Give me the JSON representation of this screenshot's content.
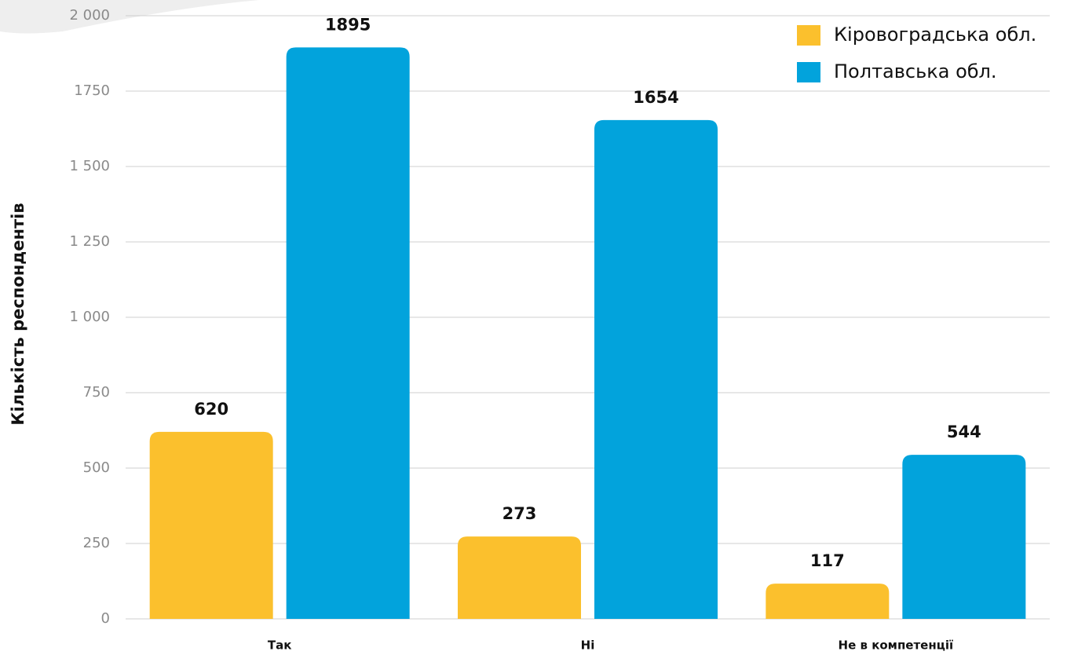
{
  "chart_data": {
    "type": "bar",
    "y_label": "Кількість респондентів",
    "categories": [
      "Так",
      "Ні",
      "Не в компетенції"
    ],
    "series": [
      {
        "name": "Кіровоградська обл.",
        "color": "#fbc02d",
        "values": [
          620,
          273,
          117
        ]
      },
      {
        "name": "Полтавська обл.",
        "color": "#02a3dc",
        "values": [
          1895,
          1654,
          544
        ]
      }
    ],
    "ylim": [
      0,
      2000
    ],
    "yticks": [
      0,
      250,
      500,
      750,
      {
        "value": 1000,
        "label": "1 000"
      },
      {
        "value": 1250,
        "label": "1 250"
      },
      {
        "value": 1500,
        "label": "1 500"
      },
      1750,
      {
        "value": 2000,
        "label": "2 000"
      }
    ],
    "grid": true,
    "legend": "top-right"
  }
}
